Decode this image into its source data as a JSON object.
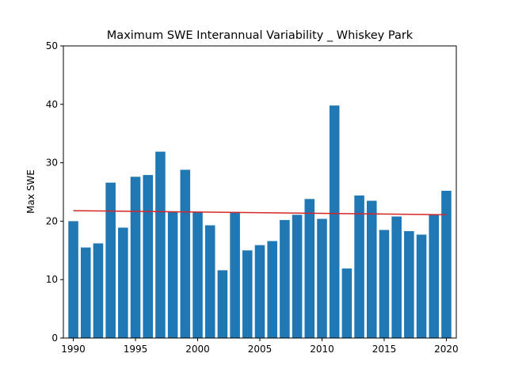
{
  "chart_data": {
    "type": "bar",
    "title": "Maximum SWE Interannual Variability _ Whiskey Park",
    "xlabel": "",
    "ylabel": "Max SWE",
    "ylim": [
      0,
      50
    ],
    "xlim": [
      1989.2,
      2020.8
    ],
    "x_ticks": [
      1990,
      1995,
      2000,
      2005,
      2010,
      2015,
      2020
    ],
    "y_ticks": [
      0,
      10,
      20,
      30,
      40,
      50
    ],
    "grid": false,
    "bar_color": "#1f77b4",
    "trend_color": "#d62728",
    "years": [
      1990,
      1991,
      1992,
      1993,
      1994,
      1995,
      1996,
      1997,
      1998,
      1999,
      2000,
      2001,
      2002,
      2003,
      2004,
      2005,
      2006,
      2007,
      2008,
      2009,
      2010,
      2011,
      2012,
      2013,
      2014,
      2015,
      2016,
      2017,
      2018,
      2019,
      2020
    ],
    "values": [
      20.0,
      15.5,
      16.2,
      26.6,
      18.9,
      27.6,
      27.9,
      31.9,
      21.6,
      28.8,
      21.6,
      19.3,
      11.6,
      21.6,
      15.0,
      15.9,
      16.6,
      20.2,
      21.1,
      23.8,
      20.4,
      39.8,
      11.9,
      24.4,
      23.5,
      18.5,
      20.8,
      18.3,
      17.7,
      21.1,
      25.2
    ],
    "trend": {
      "x": [
        1990,
        2020
      ],
      "y": [
        21.8,
        21.1
      ]
    }
  }
}
